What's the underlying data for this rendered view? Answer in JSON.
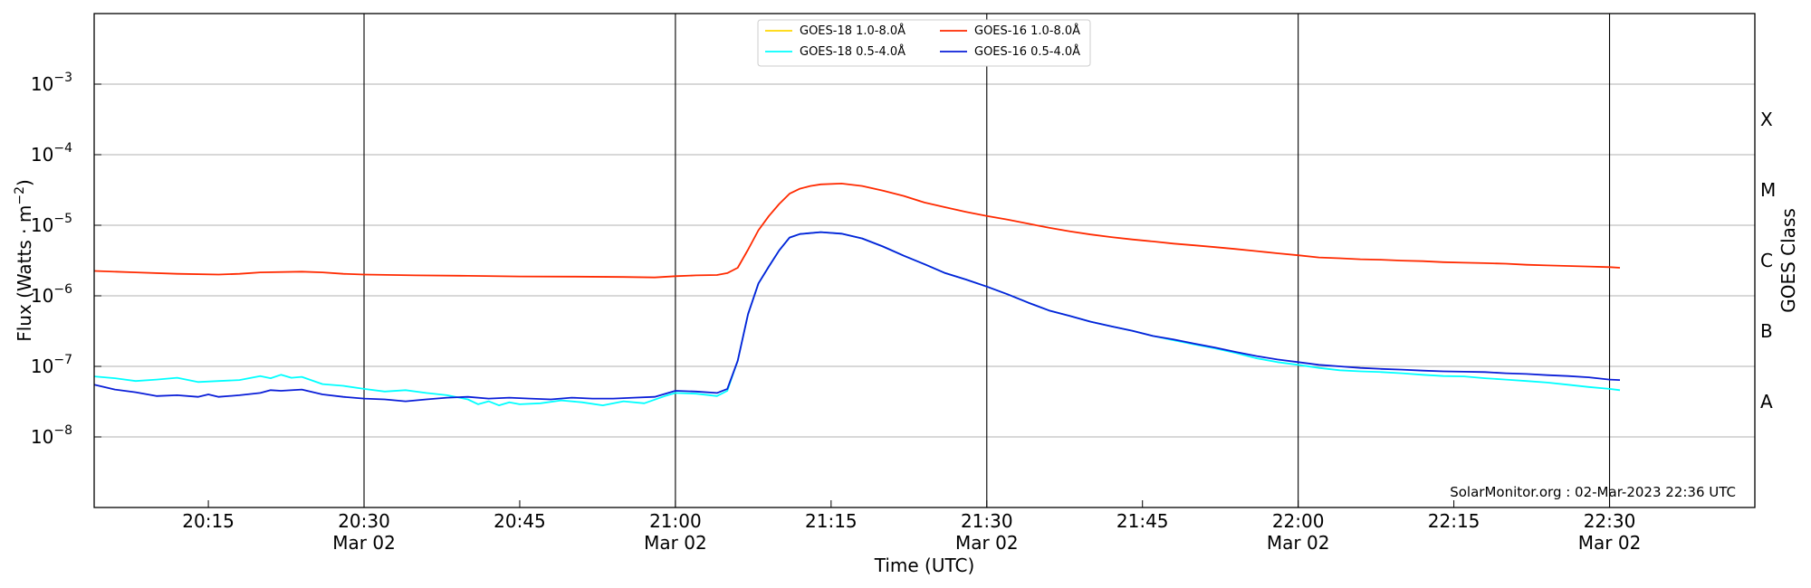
{
  "chart_data": {
    "type": "line",
    "y_scale": "log",
    "ylabel": "Flux (Watts · m⁻²)",
    "xlabel": "Time (UTC)",
    "right_axis_label": "GOES Class",
    "watermark": "SolarMonitor.org : 02-Mar-2023 22:36 UTC",
    "xlim": [
      "20:04",
      "22:44"
    ],
    "ylim": [
      1e-09,
      0.01
    ],
    "y_ticks": [
      {
        "value": 1e-08,
        "base": "10",
        "exp": "−8"
      },
      {
        "value": 1e-07,
        "base": "10",
        "exp": "−7"
      },
      {
        "value": 1e-06,
        "base": "10",
        "exp": "−6"
      },
      {
        "value": 1e-05,
        "base": "10",
        "exp": "−5"
      },
      {
        "value": 0.0001,
        "base": "10",
        "exp": "−4"
      },
      {
        "value": 0.001,
        "base": "10",
        "exp": "−3"
      }
    ],
    "x_ticks": [
      {
        "time": "20:15",
        "label": "20:15",
        "date": ""
      },
      {
        "time": "20:30",
        "label": "20:30",
        "date": "Mar 02"
      },
      {
        "time": "20:45",
        "label": "20:45",
        "date": ""
      },
      {
        "time": "21:00",
        "label": "21:00",
        "date": "Mar 02"
      },
      {
        "time": "21:15",
        "label": "21:15",
        "date": ""
      },
      {
        "time": "21:30",
        "label": "21:30",
        "date": "Mar 02"
      },
      {
        "time": "21:45",
        "label": "21:45",
        "date": ""
      },
      {
        "time": "22:00",
        "label": "22:00",
        "date": "Mar 02"
      },
      {
        "time": "22:15",
        "label": "22:15",
        "date": ""
      },
      {
        "time": "22:30",
        "label": "22:30",
        "date": "Mar 02"
      }
    ],
    "vertical_lines": [
      "20:30",
      "21:00",
      "21:30",
      "22:00",
      "22:30"
    ],
    "goes_classes": [
      {
        "label": "A",
        "value": 3.16e-08
      },
      {
        "label": "B",
        "value": 3.16e-07
      },
      {
        "label": "C",
        "value": 3.16e-06
      },
      {
        "label": "M",
        "value": 3.16e-05
      },
      {
        "label": "X",
        "value": 0.000316
      }
    ],
    "legend_position": "top-center",
    "series": [
      {
        "name": "GOES-18 1.0-8.0Å",
        "color": "#ffd700",
        "points": []
      },
      {
        "name": "GOES-18 0.5-4.0Å",
        "color": "#00ffff",
        "points": [
          [
            "20:04",
            7.2e-08
          ],
          [
            "20:06",
            6.8e-08
          ],
          [
            "20:08",
            6.2e-08
          ],
          [
            "20:10",
            6.5e-08
          ],
          [
            "20:12",
            6.9e-08
          ],
          [
            "20:14",
            6e-08
          ],
          [
            "20:16",
            6.2e-08
          ],
          [
            "20:18",
            6.4e-08
          ],
          [
            "20:20",
            7.3e-08
          ],
          [
            "20:21",
            6.8e-08
          ],
          [
            "20:22",
            7.6e-08
          ],
          [
            "20:23",
            6.9e-08
          ],
          [
            "20:24",
            7.1e-08
          ],
          [
            "20:26",
            5.6e-08
          ],
          [
            "20:28",
            5.3e-08
          ],
          [
            "20:30",
            4.8e-08
          ],
          [
            "20:32",
            4.4e-08
          ],
          [
            "20:34",
            4.6e-08
          ],
          [
            "20:36",
            4.2e-08
          ],
          [
            "20:38",
            3.9e-08
          ],
          [
            "20:40",
            3.4e-08
          ],
          [
            "20:41",
            2.9e-08
          ],
          [
            "20:42",
            3.2e-08
          ],
          [
            "20:43",
            2.8e-08
          ],
          [
            "20:44",
            3.1e-08
          ],
          [
            "20:45",
            2.9e-08
          ],
          [
            "20:47",
            3e-08
          ],
          [
            "20:49",
            3.3e-08
          ],
          [
            "20:51",
            3.1e-08
          ],
          [
            "20:53",
            2.8e-08
          ],
          [
            "20:55",
            3.2e-08
          ],
          [
            "20:57",
            3e-08
          ],
          [
            "20:59",
            3.8e-08
          ],
          [
            "21:00",
            4.2e-08
          ],
          [
            "21:02",
            4.1e-08
          ],
          [
            "21:04",
            3.8e-08
          ],
          [
            "21:05",
            4.5e-08
          ],
          [
            "21:06",
            1.2e-07
          ],
          [
            "21:07",
            5.5e-07
          ],
          [
            "21:08",
            1.5e-06
          ],
          [
            "21:09",
            2.6e-06
          ],
          [
            "21:10",
            4.4e-06
          ],
          [
            "21:11",
            6.7e-06
          ],
          [
            "21:12",
            7.5e-06
          ],
          [
            "21:14",
            8e-06
          ],
          [
            "21:16",
            7.6e-06
          ],
          [
            "21:18",
            6.5e-06
          ],
          [
            "21:20",
            5e-06
          ],
          [
            "21:22",
            3.7e-06
          ],
          [
            "21:24",
            2.8e-06
          ],
          [
            "21:26",
            2.1e-06
          ],
          [
            "21:28",
            1.7e-06
          ],
          [
            "21:30",
            1.35e-06
          ],
          [
            "21:32",
            1.05e-06
          ],
          [
            "21:34",
            8e-07
          ],
          [
            "21:36",
            6.2e-07
          ],
          [
            "21:38",
            5.2e-07
          ],
          [
            "21:40",
            4.3e-07
          ],
          [
            "21:42",
            3.7e-07
          ],
          [
            "21:44",
            3.2e-07
          ],
          [
            "21:46",
            2.7e-07
          ],
          [
            "21:48",
            2.35e-07
          ],
          [
            "21:50",
            2.05e-07
          ],
          [
            "21:52",
            1.8e-07
          ],
          [
            "21:54",
            1.55e-07
          ],
          [
            "21:56",
            1.3e-07
          ],
          [
            "21:58",
            1.15e-07
          ],
          [
            "22:00",
            1.05e-07
          ],
          [
            "22:02",
            9.5e-08
          ],
          [
            "22:04",
            8.8e-08
          ],
          [
            "22:06",
            8.5e-08
          ],
          [
            "22:08",
            8.3e-08
          ],
          [
            "22:10",
            8e-08
          ],
          [
            "22:12",
            7.6e-08
          ],
          [
            "22:14",
            7.3e-08
          ],
          [
            "22:16",
            7.2e-08
          ],
          [
            "22:18",
            6.8e-08
          ],
          [
            "22:20",
            6.5e-08
          ],
          [
            "22:22",
            6.2e-08
          ],
          [
            "22:24",
            5.9e-08
          ],
          [
            "22:26",
            5.5e-08
          ],
          [
            "22:28",
            5.1e-08
          ],
          [
            "22:30",
            4.8e-08
          ],
          [
            "22:31",
            4.6e-08
          ]
        ]
      },
      {
        "name": "GOES-16 1.0-8.0Å",
        "color": "#ff2a00",
        "points": [
          [
            "20:04",
            2.25e-06
          ],
          [
            "20:08",
            2.15e-06
          ],
          [
            "20:12",
            2.05e-06
          ],
          [
            "20:16",
            2e-06
          ],
          [
            "20:18",
            2.05e-06
          ],
          [
            "20:20",
            2.15e-06
          ],
          [
            "20:24",
            2.2e-06
          ],
          [
            "20:26",
            2.15e-06
          ],
          [
            "20:28",
            2.05e-06
          ],
          [
            "20:30",
            2e-06
          ],
          [
            "20:35",
            1.95e-06
          ],
          [
            "20:40",
            1.92e-06
          ],
          [
            "20:45",
            1.88e-06
          ],
          [
            "20:50",
            1.87e-06
          ],
          [
            "20:55",
            1.85e-06
          ],
          [
            "20:58",
            1.82e-06
          ],
          [
            "21:00",
            1.9e-06
          ],
          [
            "21:02",
            1.95e-06
          ],
          [
            "21:04",
            1.97e-06
          ],
          [
            "21:05",
            2.1e-06
          ],
          [
            "21:06",
            2.5e-06
          ],
          [
            "21:07",
            4.5e-06
          ],
          [
            "21:08",
            8.5e-06
          ],
          [
            "21:09",
            1.35e-05
          ],
          [
            "21:10",
            2e-05
          ],
          [
            "21:11",
            2.8e-05
          ],
          [
            "21:12",
            3.3e-05
          ],
          [
            "21:13",
            3.6e-05
          ],
          [
            "21:14",
            3.8e-05
          ],
          [
            "21:16",
            3.9e-05
          ],
          [
            "21:18",
            3.6e-05
          ],
          [
            "21:20",
            3.1e-05
          ],
          [
            "21:22",
            2.6e-05
          ],
          [
            "21:24",
            2.1e-05
          ],
          [
            "21:26",
            1.8e-05
          ],
          [
            "21:28",
            1.55e-05
          ],
          [
            "21:30",
            1.35e-05
          ],
          [
            "21:32",
            1.2e-05
          ],
          [
            "21:34",
            1.05e-05
          ],
          [
            "21:36",
            9.2e-06
          ],
          [
            "21:38",
            8.2e-06
          ],
          [
            "21:40",
            7.4e-06
          ],
          [
            "21:42",
            6.8e-06
          ],
          [
            "21:44",
            6.3e-06
          ],
          [
            "21:46",
            5.9e-06
          ],
          [
            "21:48",
            5.5e-06
          ],
          [
            "21:50",
            5.2e-06
          ],
          [
            "21:52",
            4.9e-06
          ],
          [
            "21:54",
            4.6e-06
          ],
          [
            "21:56",
            4.3e-06
          ],
          [
            "21:58",
            4e-06
          ],
          [
            "22:00",
            3.75e-06
          ],
          [
            "22:02",
            3.5e-06
          ],
          [
            "22:04",
            3.4e-06
          ],
          [
            "22:06",
            3.3e-06
          ],
          [
            "22:08",
            3.25e-06
          ],
          [
            "22:10",
            3.15e-06
          ],
          [
            "22:12",
            3.1e-06
          ],
          [
            "22:14",
            3e-06
          ],
          [
            "22:16",
            2.95e-06
          ],
          [
            "22:18",
            2.9e-06
          ],
          [
            "22:20",
            2.85e-06
          ],
          [
            "22:22",
            2.75e-06
          ],
          [
            "22:24",
            2.7e-06
          ],
          [
            "22:26",
            2.65e-06
          ],
          [
            "22:28",
            2.6e-06
          ],
          [
            "22:30",
            2.55e-06
          ],
          [
            "22:31",
            2.5e-06
          ]
        ]
      },
      {
        "name": "GOES-16 0.5-4.0Å",
        "color": "#0a1ed8",
        "points": [
          [
            "20:04",
            5.5e-08
          ],
          [
            "20:06",
            4.7e-08
          ],
          [
            "20:08",
            4.3e-08
          ],
          [
            "20:10",
            3.8e-08
          ],
          [
            "20:12",
            3.9e-08
          ],
          [
            "20:14",
            3.7e-08
          ],
          [
            "20:15",
            4e-08
          ],
          [
            "20:16",
            3.7e-08
          ],
          [
            "20:18",
            3.9e-08
          ],
          [
            "20:20",
            4.2e-08
          ],
          [
            "20:21",
            4.6e-08
          ],
          [
            "20:22",
            4.5e-08
          ],
          [
            "20:24",
            4.7e-08
          ],
          [
            "20:26",
            4e-08
          ],
          [
            "20:28",
            3.7e-08
          ],
          [
            "20:30",
            3.5e-08
          ],
          [
            "20:32",
            3.4e-08
          ],
          [
            "20:34",
            3.2e-08
          ],
          [
            "20:36",
            3.4e-08
          ],
          [
            "20:38",
            3.6e-08
          ],
          [
            "20:40",
            3.7e-08
          ],
          [
            "20:42",
            3.5e-08
          ],
          [
            "20:44",
            3.6e-08
          ],
          [
            "20:46",
            3.5e-08
          ],
          [
            "20:48",
            3.4e-08
          ],
          [
            "20:50",
            3.6e-08
          ],
          [
            "20:52",
            3.5e-08
          ],
          [
            "20:54",
            3.5e-08
          ],
          [
            "20:56",
            3.6e-08
          ],
          [
            "20:58",
            3.7e-08
          ],
          [
            "21:00",
            4.5e-08
          ],
          [
            "21:02",
            4.4e-08
          ],
          [
            "21:04",
            4.2e-08
          ],
          [
            "21:05",
            4.8e-08
          ],
          [
            "21:06",
            1.2e-07
          ],
          [
            "21:07",
            5.5e-07
          ],
          [
            "21:08",
            1.5e-06
          ],
          [
            "21:09",
            2.6e-06
          ],
          [
            "21:10",
            4.4e-06
          ],
          [
            "21:11",
            6.7e-06
          ],
          [
            "21:12",
            7.5e-06
          ],
          [
            "21:14",
            8e-06
          ],
          [
            "21:16",
            7.6e-06
          ],
          [
            "21:18",
            6.5e-06
          ],
          [
            "21:20",
            5e-06
          ],
          [
            "21:22",
            3.7e-06
          ],
          [
            "21:24",
            2.8e-06
          ],
          [
            "21:26",
            2.1e-06
          ],
          [
            "21:28",
            1.7e-06
          ],
          [
            "21:30",
            1.35e-06
          ],
          [
            "21:32",
            1.05e-06
          ],
          [
            "21:34",
            8e-07
          ],
          [
            "21:36",
            6.2e-07
          ],
          [
            "21:38",
            5.2e-07
          ],
          [
            "21:40",
            4.3e-07
          ],
          [
            "21:42",
            3.7e-07
          ],
          [
            "21:44",
            3.2e-07
          ],
          [
            "21:46",
            2.7e-07
          ],
          [
            "21:48",
            2.4e-07
          ],
          [
            "21:50",
            2.1e-07
          ],
          [
            "21:52",
            1.85e-07
          ],
          [
            "21:54",
            1.6e-07
          ],
          [
            "21:56",
            1.4e-07
          ],
          [
            "21:58",
            1.25e-07
          ],
          [
            "22:00",
            1.15e-07
          ],
          [
            "22:02",
            1.05e-07
          ],
          [
            "22:04",
            1e-07
          ],
          [
            "22:06",
            9.5e-08
          ],
          [
            "22:08",
            9.2e-08
          ],
          [
            "22:10",
            9e-08
          ],
          [
            "22:12",
            8.7e-08
          ],
          [
            "22:14",
            8.5e-08
          ],
          [
            "22:16",
            8.4e-08
          ],
          [
            "22:18",
            8.3e-08
          ],
          [
            "22:20",
            8e-08
          ],
          [
            "22:22",
            7.8e-08
          ],
          [
            "22:24",
            7.5e-08
          ],
          [
            "22:26",
            7.3e-08
          ],
          [
            "22:28",
            7e-08
          ],
          [
            "22:30",
            6.5e-08
          ],
          [
            "22:31",
            6.4e-08
          ]
        ]
      }
    ]
  }
}
